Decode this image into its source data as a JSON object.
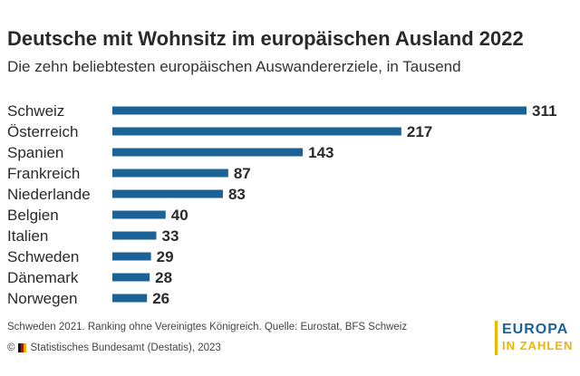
{
  "title": "Deutsche mit Wohnsitz im europäischen Ausland 2022",
  "subtitle": "Die zehn beliebtesten europäischen Auswandererziele, in Tausend",
  "note": "Schweden 2021. Ranking ohne Vereinigtes Königreich. Quelle: Eurostat, BFS Schweiz",
  "copyright": {
    "symbol": "©",
    "text": "Statistisches Bundesamt (Destatis), 2023"
  },
  "logo": {
    "line1": "EUROPA",
    "line2": "IN ZAHLEN"
  },
  "colors": {
    "bar": "#1b6396",
    "logo_blue": "#1b6396",
    "logo_yellow": "#f0b400"
  },
  "chart_data": {
    "type": "bar",
    "orientation": "horizontal",
    "categories": [
      "Schweiz",
      "Österreich",
      "Spanien",
      "Frankreich",
      "Niederlande",
      "Belgien",
      "Italien",
      "Schweden",
      "Dänemark",
      "Norwegen"
    ],
    "values": [
      311,
      217,
      143,
      87,
      83,
      40,
      33,
      29,
      28,
      26
    ],
    "title": "Deutsche mit Wohnsitz im europäischen Ausland 2022",
    "subtitle": "Die zehn beliebtesten europäischen Auswandererziele, in Tausend",
    "xlim": [
      0,
      311
    ],
    "grid": false,
    "data_labels": true
  }
}
